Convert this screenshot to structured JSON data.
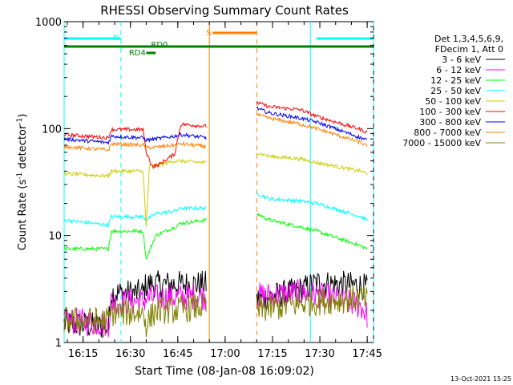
{
  "chart_data": {
    "type": "line",
    "title": "RHESSI Observing Summary Count Rates",
    "xlabel": "Start Time (08-Jan-08 16:09:02)",
    "ylabel": "Count Rate (s",
    "ylabel_sup": "-1",
    "ylabel_tail": " detector",
    "ylabel_tail_sup": "-1",
    "ylabel_close": ")",
    "yscale": "log",
    "ylim": [
      1,
      1000
    ],
    "xlim_minutes": [
      0,
      98
    ],
    "x_tick_labels": [
      "16:15",
      "16:30",
      "16:45",
      "17:00",
      "17:15",
      "17:30",
      "17:45"
    ],
    "x_tick_minutes": [
      6,
      21,
      36,
      51,
      66,
      81,
      96
    ],
    "y_tick_labels": [
      "1",
      "10",
      "100",
      "1000"
    ],
    "y_tick_values": [
      1,
      10,
      100,
      1000
    ],
    "legend_header": [
      "Det 1,3,4,5,6,9,",
      "FDecim 1, Att 0"
    ],
    "legend_position": "right",
    "data_gap_minutes": [
      45,
      61
    ],
    "series": [
      {
        "name": "3 - 6 keV",
        "color": "#000000",
        "points": [
          [
            0,
            1.5
          ],
          [
            14,
            1.4
          ],
          [
            15,
            2.9
          ],
          [
            25,
            2.9
          ],
          [
            26,
            3.5
          ],
          [
            45,
            3.5
          ],
          [
            61,
            2.5
          ],
          [
            75,
            3.1
          ],
          [
            80,
            3.6
          ],
          [
            94,
            3.4
          ],
          [
            96,
            3.2
          ]
        ]
      },
      {
        "name": "6 - 12 keV",
        "color": "#ff00ff",
        "points": [
          [
            0,
            1.6
          ],
          [
            14,
            1.5
          ],
          [
            15,
            2.4
          ],
          [
            25,
            2.4
          ],
          [
            26,
            2.6
          ],
          [
            45,
            2.7
          ],
          [
            61,
            2.7
          ],
          [
            75,
            2.9
          ],
          [
            80,
            2.8
          ],
          [
            94,
            2.2
          ],
          [
            96,
            1.8
          ]
        ]
      },
      {
        "name": "12 - 25 keV",
        "color": "#00ff00",
        "points": [
          [
            0,
            7.5
          ],
          [
            14,
            7.5
          ],
          [
            15,
            11
          ],
          [
            25,
            11
          ],
          [
            26,
            6
          ],
          [
            28,
            8.5
          ],
          [
            29,
            10
          ],
          [
            35,
            12
          ],
          [
            37,
            13
          ],
          [
            45,
            14
          ],
          [
            61,
            16
          ],
          [
            65,
            14
          ],
          [
            75,
            12
          ],
          [
            80,
            11
          ],
          [
            94,
            8
          ],
          [
            96,
            7.5
          ]
        ]
      },
      {
        "name": "25 - 50 keV",
        "color": "#00ffff",
        "points": [
          [
            0,
            14
          ],
          [
            14,
            12.5
          ],
          [
            15,
            15
          ],
          [
            25,
            15
          ],
          [
            26,
            14
          ],
          [
            29,
            16
          ],
          [
            35,
            17
          ],
          [
            37,
            18
          ],
          [
            45,
            18
          ],
          [
            61,
            25
          ],
          [
            65,
            22
          ],
          [
            75,
            21
          ],
          [
            80,
            20
          ],
          [
            94,
            15
          ],
          [
            96,
            14
          ]
        ]
      },
      {
        "name": "50 - 100 keV",
        "color": "#cccc00",
        "points": [
          [
            0,
            38
          ],
          [
            14,
            36
          ],
          [
            15,
            40
          ],
          [
            25,
            40
          ],
          [
            26,
            12
          ],
          [
            27,
            45
          ],
          [
            29,
            45
          ],
          [
            35,
            50
          ],
          [
            45,
            48
          ],
          [
            61,
            60
          ],
          [
            65,
            55
          ],
          [
            75,
            52
          ],
          [
            80,
            48
          ],
          [
            94,
            40
          ],
          [
            96,
            38
          ]
        ]
      },
      {
        "name": "100 - 300 keV",
        "color": "#ff0000",
        "points": [
          [
            0,
            88
          ],
          [
            14,
            82
          ],
          [
            15,
            98
          ],
          [
            25,
            98
          ],
          [
            26,
            60
          ],
          [
            28,
            44
          ],
          [
            30,
            46
          ],
          [
            35,
            58
          ],
          [
            37,
            110
          ],
          [
            45,
            105
          ],
          [
            61,
            175
          ],
          [
            65,
            160
          ],
          [
            75,
            150
          ],
          [
            80,
            130
          ],
          [
            94,
            98
          ],
          [
            96,
            92
          ]
        ]
      },
      {
        "name": "300 - 800 keV",
        "color": "#0000ff",
        "points": [
          [
            0,
            80
          ],
          [
            14,
            74
          ],
          [
            15,
            85
          ],
          [
            25,
            82
          ],
          [
            26,
            78
          ],
          [
            29,
            80
          ],
          [
            35,
            85
          ],
          [
            37,
            88
          ],
          [
            45,
            82
          ],
          [
            61,
            155
          ],
          [
            65,
            140
          ],
          [
            75,
            125
          ],
          [
            80,
            115
          ],
          [
            94,
            82
          ],
          [
            96,
            78
          ]
        ]
      },
      {
        "name": "800 - 7000 keV",
        "color": "#ff8000",
        "points": [
          [
            0,
            68
          ],
          [
            14,
            63
          ],
          [
            15,
            72
          ],
          [
            25,
            70
          ],
          [
            26,
            66
          ],
          [
            29,
            67
          ],
          [
            35,
            70
          ],
          [
            37,
            72
          ],
          [
            45,
            68
          ],
          [
            61,
            135
          ],
          [
            65,
            125
          ],
          [
            75,
            110
          ],
          [
            80,
            100
          ],
          [
            94,
            74
          ],
          [
            96,
            68
          ]
        ]
      },
      {
        "name": "7000 - 15000 keV",
        "color": "#808000",
        "points": [
          [
            0,
            1.6
          ],
          [
            14,
            1.6
          ],
          [
            15,
            1.9
          ],
          [
            25,
            1.9
          ],
          [
            26,
            1.5
          ],
          [
            29,
            2.0
          ],
          [
            35,
            2.0
          ],
          [
            45,
            2.2
          ],
          [
            61,
            2.0
          ],
          [
            75,
            2.3
          ],
          [
            80,
            2.4
          ],
          [
            94,
            2.6
          ],
          [
            96,
            2.5
          ]
        ]
      }
    ],
    "flag_bars": [
      {
        "label": "N",
        "color": "#00ffff",
        "segments": [
          [
            0,
            18
          ],
          [
            80,
            98
          ]
        ],
        "level": "highest"
      },
      {
        "label": "S",
        "color": "#ff8000",
        "segments": [
          [
            47,
            61
          ]
        ],
        "level": "high"
      },
      {
        "label": "RD0",
        "color": "#008000",
        "segments": [
          [
            0,
            98
          ]
        ],
        "level": "middle"
      },
      {
        "label": "RD4",
        "color": "#008000",
        "segments": [
          [
            26,
            29
          ]
        ],
        "level": "low"
      }
    ],
    "vertical_markers": [
      {
        "color": "#00ffff",
        "style": "solid",
        "x_minutes": [
          0,
          78
        ]
      },
      {
        "color": "#00ffff",
        "style": "dashed",
        "x_minutes": [
          18,
          98
        ]
      },
      {
        "color": "#ff8000",
        "style": "solid",
        "x_minutes": [
          46
        ]
      },
      {
        "color": "#ff8000",
        "style": "dashed",
        "x_minutes": [
          61
        ]
      }
    ],
    "grid": false
  },
  "footer_date": "13-Oct-2021 15:25"
}
